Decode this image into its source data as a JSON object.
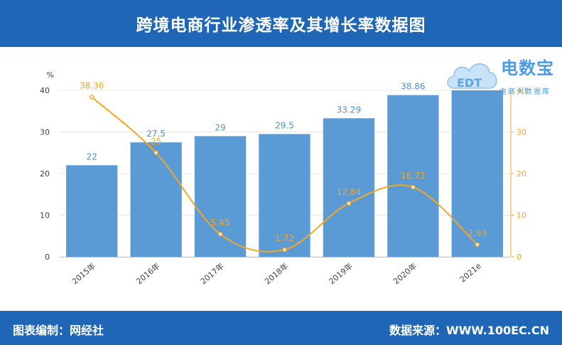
{
  "header": {
    "title": "跨境电商行业渗透率及其增长率数据图"
  },
  "footer": {
    "left_text": "图表编制：网经社",
    "right_text": "数据来源：WWW.100EC.CN"
  },
  "watermark": {
    "title": "电数宝",
    "subtitle": "电商大数据库",
    "logo_text": "EDT"
  },
  "chart_data": {
    "type": "bar",
    "categories": [
      "2015年",
      "2016年",
      "2017年",
      "2018年",
      "2019年",
      "2020年",
      "2021e"
    ],
    "series": [
      {
        "values": [
          22,
          27.5,
          29,
          29.5,
          33.29,
          38.86,
          40
        ],
        "labels": [
          "22",
          "27.5",
          "29",
          "29.5",
          "33.29",
          "38.86",
          "40"
        ],
        "color": "#5b9bd5",
        "kind": "bar",
        "axis": "left"
      },
      {
        "values": [
          38.36,
          25,
          5.45,
          1.72,
          12.84,
          16.73,
          2.93
        ],
        "labels": [
          "38.36",
          "25",
          "5.45",
          "1.72",
          "12.84",
          "16.73",
          "2.93"
        ],
        "color": "#f5a623",
        "kind": "line",
        "axis": "right"
      }
    ],
    "y_unit": "%",
    "ylim_left": [
      0,
      40
    ],
    "ylim_right": [
      0,
      40
    ],
    "yticks_left": [
      "0",
      "10",
      "20",
      "30",
      "40"
    ],
    "yticks_right": [
      "0",
      "10",
      "20",
      "30",
      "40"
    ],
    "grid": true
  }
}
